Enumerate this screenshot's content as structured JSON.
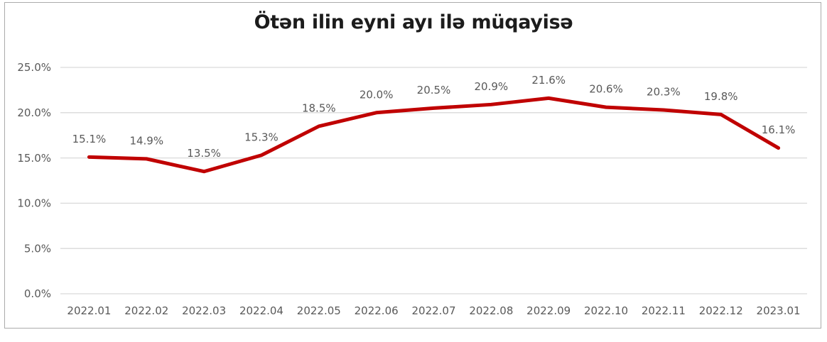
{
  "chart_data": {
    "type": "line",
    "title": "Ötən ilin eyni ayı ilə müqayisə",
    "xlabel": "",
    "ylabel": "",
    "categories": [
      "2022.01",
      "2022.02",
      "2022.03",
      "2022.04",
      "2022.05",
      "2022.06",
      "2022.07",
      "2022.08",
      "2022.09",
      "2022.10",
      "2022.11",
      "2022.12",
      "2023.01"
    ],
    "series": [
      {
        "name": "Ötən ilin eyni ayı ilə müqayisə",
        "values": [
          15.1,
          14.9,
          13.5,
          15.3,
          18.5,
          20.0,
          20.5,
          20.9,
          21.6,
          20.6,
          20.3,
          19.8,
          16.1
        ],
        "point_labels": [
          "15.1%",
          "14.9%",
          "13.5%",
          "15.3%",
          "18.5%",
          "20.0%",
          "20.5%",
          "20.9%",
          "21.6%",
          "20.6%",
          "20.3%",
          "19.8%",
          "16.1%"
        ]
      }
    ],
    "ylim": [
      0,
      25
    ],
    "yticks": [
      {
        "value": 0,
        "label": "0.0%"
      },
      {
        "value": 5,
        "label": "5.0%"
      },
      {
        "value": 10,
        "label": "10.0%"
      },
      {
        "value": 15,
        "label": "15.0%"
      },
      {
        "value": 20,
        "label": "20.0%"
      },
      {
        "value": 25,
        "label": "25.0%"
      }
    ],
    "grid": true,
    "legend": "none",
    "colors": {
      "line": "#c00000",
      "label_text": "#595959",
      "tick_text": "#595959",
      "grid": "#d9d9d9",
      "title_text": "#1c1c1c",
      "border": "#ababab",
      "background": "#ffffff"
    }
  }
}
